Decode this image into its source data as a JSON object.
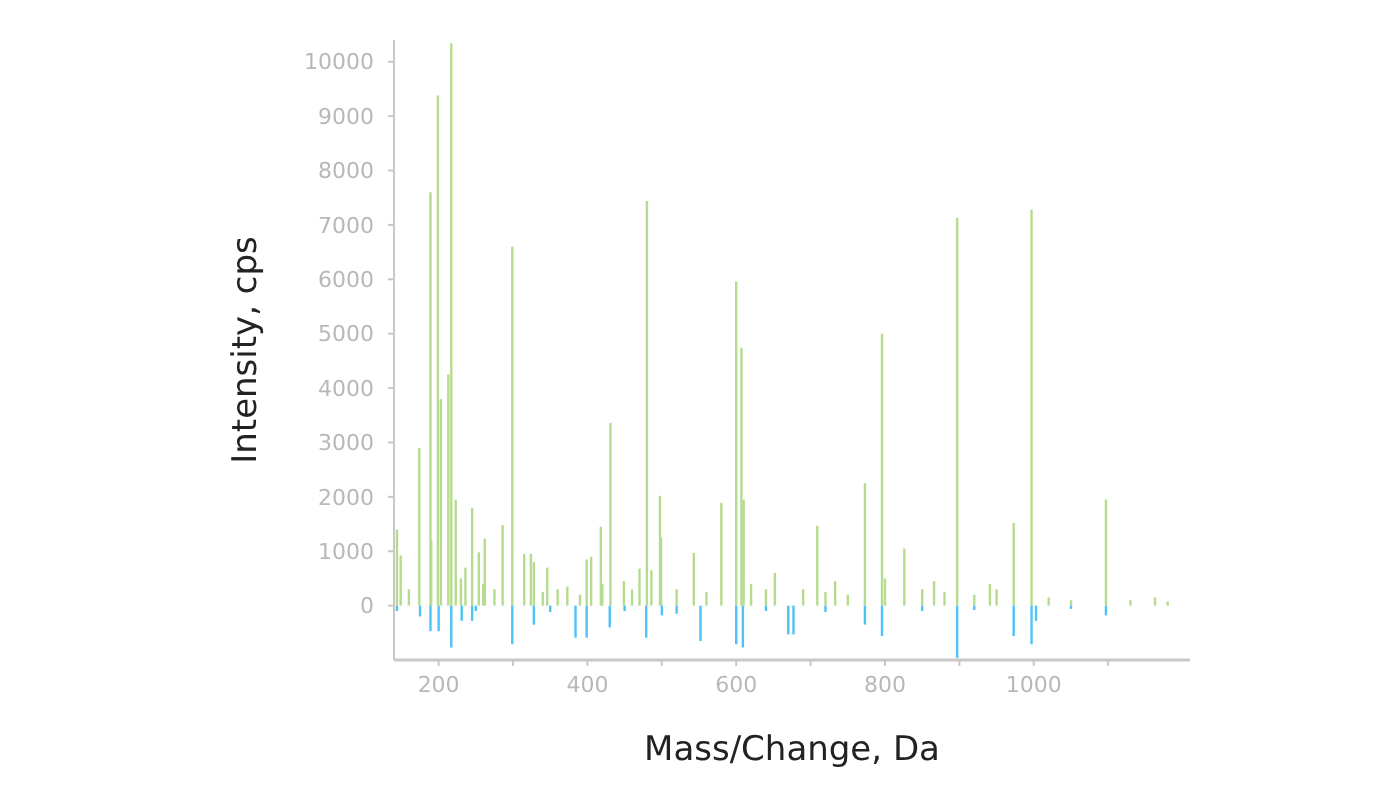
{
  "chart_data": {
    "type": "bar",
    "xlabel": "Mass/Change, Da",
    "ylabel": "Intensity, cps",
    "xlim": [
      140,
      1210
    ],
    "xticks": [
      200,
      {
        "value": 300,
        "label": null
      },
      400,
      {
        "value": 500,
        "label": null
      },
      600,
      {
        "value": 700,
        "label": null
      },
      800,
      {
        "value": 900,
        "label": null
      },
      1000,
      {
        "value": 1100,
        "label": null
      }
    ],
    "ylim": [
      -1000,
      10400
    ],
    "yticks": [
      0,
      1000,
      2000,
      3000,
      4000,
      5000,
      6000,
      7000,
      8000,
      9000,
      10000
    ],
    "series": [
      {
        "color": "#b5dc8e",
        "x": [
          144,
          149,
          160,
          174,
          189,
          190,
          199,
          203,
          213,
          217,
          223,
          230,
          236,
          245,
          254,
          260,
          262,
          275,
          286,
          299,
          315,
          324,
          328,
          340,
          346,
          360,
          373,
          390,
          399,
          405,
          418,
          420,
          431,
          449,
          460,
          470,
          480,
          486,
          497.5,
          499,
          520,
          543,
          560,
          580,
          600,
          607,
          610,
          620,
          640,
          652,
          690,
          709,
          720,
          733,
          750,
          773,
          796,
          800,
          826,
          850,
          866,
          880,
          897,
          920,
          941,
          950,
          973,
          997,
          1020,
          1050,
          1097,
          1130,
          1163,
          1180
        ],
        "values": [
          1400,
          920,
          300,
          2900,
          7600,
          1200,
          9380,
          3800,
          4250,
          10340,
          1950,
          500,
          700,
          1800,
          980,
          400,
          1230,
          300,
          1480,
          6600,
          950,
          950,
          800,
          250,
          700,
          300,
          350,
          200,
          850,
          900,
          1450,
          400,
          3360,
          450,
          300,
          680,
          7440,
          650,
          2020,
          1250,
          300,
          970,
          250,
          1890,
          5960,
          4740,
          1950,
          400,
          300,
          600,
          300,
          1470,
          250,
          450,
          200,
          2250,
          5000,
          500,
          1050,
          300,
          450,
          250,
          7130,
          200,
          400,
          300,
          1520,
          7280,
          150,
          100,
          1950,
          100,
          150,
          80
        ]
      },
      {
        "color": "#4fc3f7",
        "x": [
          144,
          175,
          189,
          200,
          217,
          231,
          245,
          250,
          299,
          328,
          350,
          384,
          399,
          430,
          450,
          479,
          500,
          520,
          552,
          600,
          609,
          640,
          670,
          677,
          720,
          773,
          796,
          850,
          897,
          920,
          973,
          997,
          1003,
          1050,
          1097
        ],
        "values": [
          -100,
          -200,
          -470,
          -470,
          -770,
          -280,
          -280,
          -100,
          -710,
          -350,
          -120,
          -590,
          -590,
          -400,
          -100,
          -590,
          -180,
          -150,
          -650,
          -710,
          -770,
          -100,
          -530,
          -530,
          -120,
          -350,
          -560,
          -100,
          -960,
          -80,
          -560,
          -710,
          -280,
          -60,
          -180
        ]
      }
    ]
  }
}
